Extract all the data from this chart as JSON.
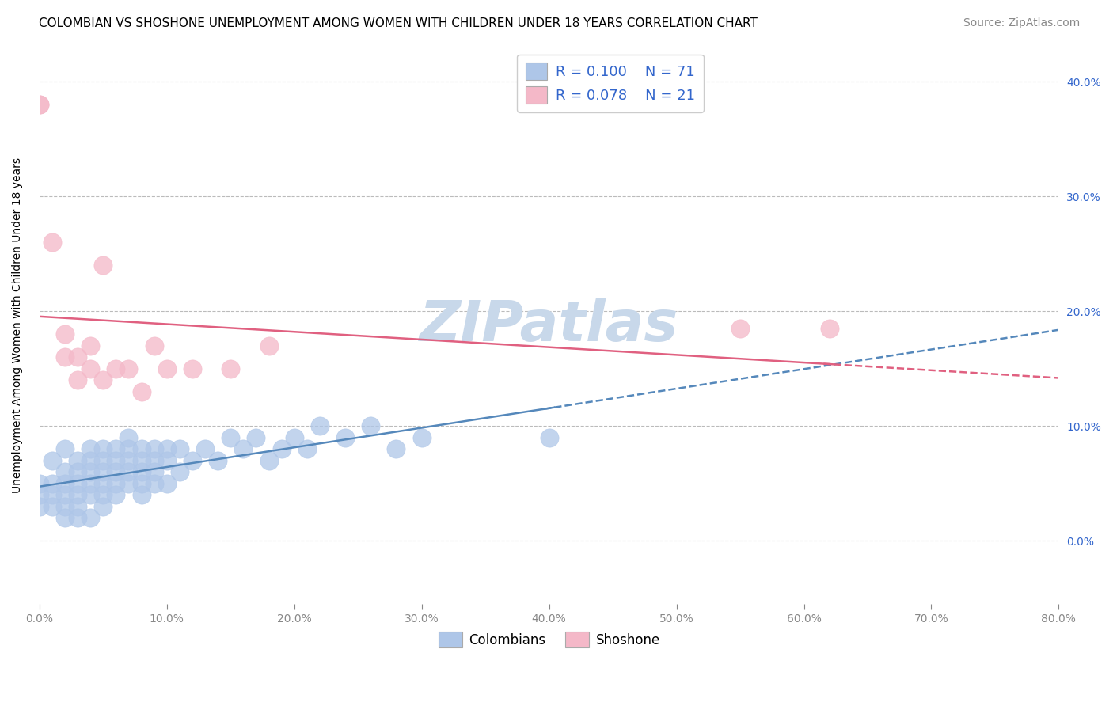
{
  "title": "COLOMBIAN VS SHOSHONE UNEMPLOYMENT AMONG WOMEN WITH CHILDREN UNDER 18 YEARS CORRELATION CHART",
  "source": "Source: ZipAtlas.com",
  "ylabel": "Unemployment Among Women with Children Under 18 years",
  "watermark": "ZIPatlas",
  "legend_r_colombians": "0.100",
  "legend_n_colombians": "71",
  "legend_r_shoshone": "0.078",
  "legend_n_shoshone": "21",
  "color_colombians": "#aec6e8",
  "color_shoshone": "#f4b8c8",
  "color_colombians_line": "#5588bb",
  "color_shoshone_line": "#e06080",
  "background_color": "#ffffff",
  "grid_color": "#bbbbbb",
  "right_ytick_color": "#3366cc",
  "xlim": [
    0.0,
    0.8
  ],
  "ylim": [
    -0.055,
    0.43
  ],
  "xticks": [
    0.0,
    0.1,
    0.2,
    0.3,
    0.4,
    0.5,
    0.6,
    0.7,
    0.8
  ],
  "xtick_labels": [
    "0.0%",
    "10.0%",
    "20.0%",
    "30.0%",
    "40.0%",
    "50.0%",
    "60.0%",
    "70.0%",
    "80.0%"
  ],
  "yticks": [
    0.0,
    0.1,
    0.2,
    0.3,
    0.4
  ],
  "ytick_labels": [
    "0.0%",
    "10.0%",
    "20.0%",
    "30.0%",
    "40.0%"
  ],
  "colombians_x": [
    0.0,
    0.0,
    0.0,
    0.01,
    0.01,
    0.01,
    0.01,
    0.02,
    0.02,
    0.02,
    0.02,
    0.02,
    0.02,
    0.03,
    0.03,
    0.03,
    0.03,
    0.03,
    0.03,
    0.04,
    0.04,
    0.04,
    0.04,
    0.04,
    0.04,
    0.05,
    0.05,
    0.05,
    0.05,
    0.05,
    0.05,
    0.06,
    0.06,
    0.06,
    0.06,
    0.06,
    0.07,
    0.07,
    0.07,
    0.07,
    0.07,
    0.08,
    0.08,
    0.08,
    0.08,
    0.08,
    0.09,
    0.09,
    0.09,
    0.09,
    0.1,
    0.1,
    0.1,
    0.11,
    0.11,
    0.12,
    0.13,
    0.14,
    0.15,
    0.16,
    0.17,
    0.18,
    0.19,
    0.2,
    0.21,
    0.22,
    0.24,
    0.26,
    0.28,
    0.3,
    0.4
  ],
  "colombians_y": [
    0.05,
    0.04,
    0.03,
    0.07,
    0.05,
    0.04,
    0.03,
    0.08,
    0.06,
    0.05,
    0.04,
    0.03,
    0.02,
    0.07,
    0.06,
    0.05,
    0.04,
    0.03,
    0.02,
    0.08,
    0.07,
    0.06,
    0.05,
    0.04,
    0.02,
    0.08,
    0.07,
    0.06,
    0.05,
    0.04,
    0.03,
    0.08,
    0.07,
    0.06,
    0.05,
    0.04,
    0.09,
    0.08,
    0.07,
    0.06,
    0.05,
    0.08,
    0.07,
    0.06,
    0.05,
    0.04,
    0.08,
    0.07,
    0.06,
    0.05,
    0.08,
    0.07,
    0.05,
    0.08,
    0.06,
    0.07,
    0.08,
    0.07,
    0.09,
    0.08,
    0.09,
    0.07,
    0.08,
    0.09,
    0.08,
    0.1,
    0.09,
    0.1,
    0.08,
    0.09,
    0.09
  ],
  "shoshone_x": [
    0.0,
    0.0,
    0.01,
    0.02,
    0.02,
    0.03,
    0.03,
    0.04,
    0.04,
    0.05,
    0.06,
    0.07,
    0.08,
    0.09,
    0.1,
    0.12,
    0.15,
    0.18,
    0.55,
    0.62,
    0.05
  ],
  "shoshone_y": [
    0.38,
    0.38,
    0.26,
    0.18,
    0.16,
    0.16,
    0.14,
    0.17,
    0.15,
    0.14,
    0.15,
    0.15,
    0.13,
    0.17,
    0.15,
    0.15,
    0.15,
    0.17,
    0.185,
    0.185,
    0.24
  ],
  "title_fontsize": 11,
  "source_fontsize": 10,
  "axis_label_fontsize": 10,
  "tick_fontsize": 10,
  "legend_fontsize": 13,
  "watermark_fontsize": 52,
  "watermark_color": "#c8d8ea"
}
